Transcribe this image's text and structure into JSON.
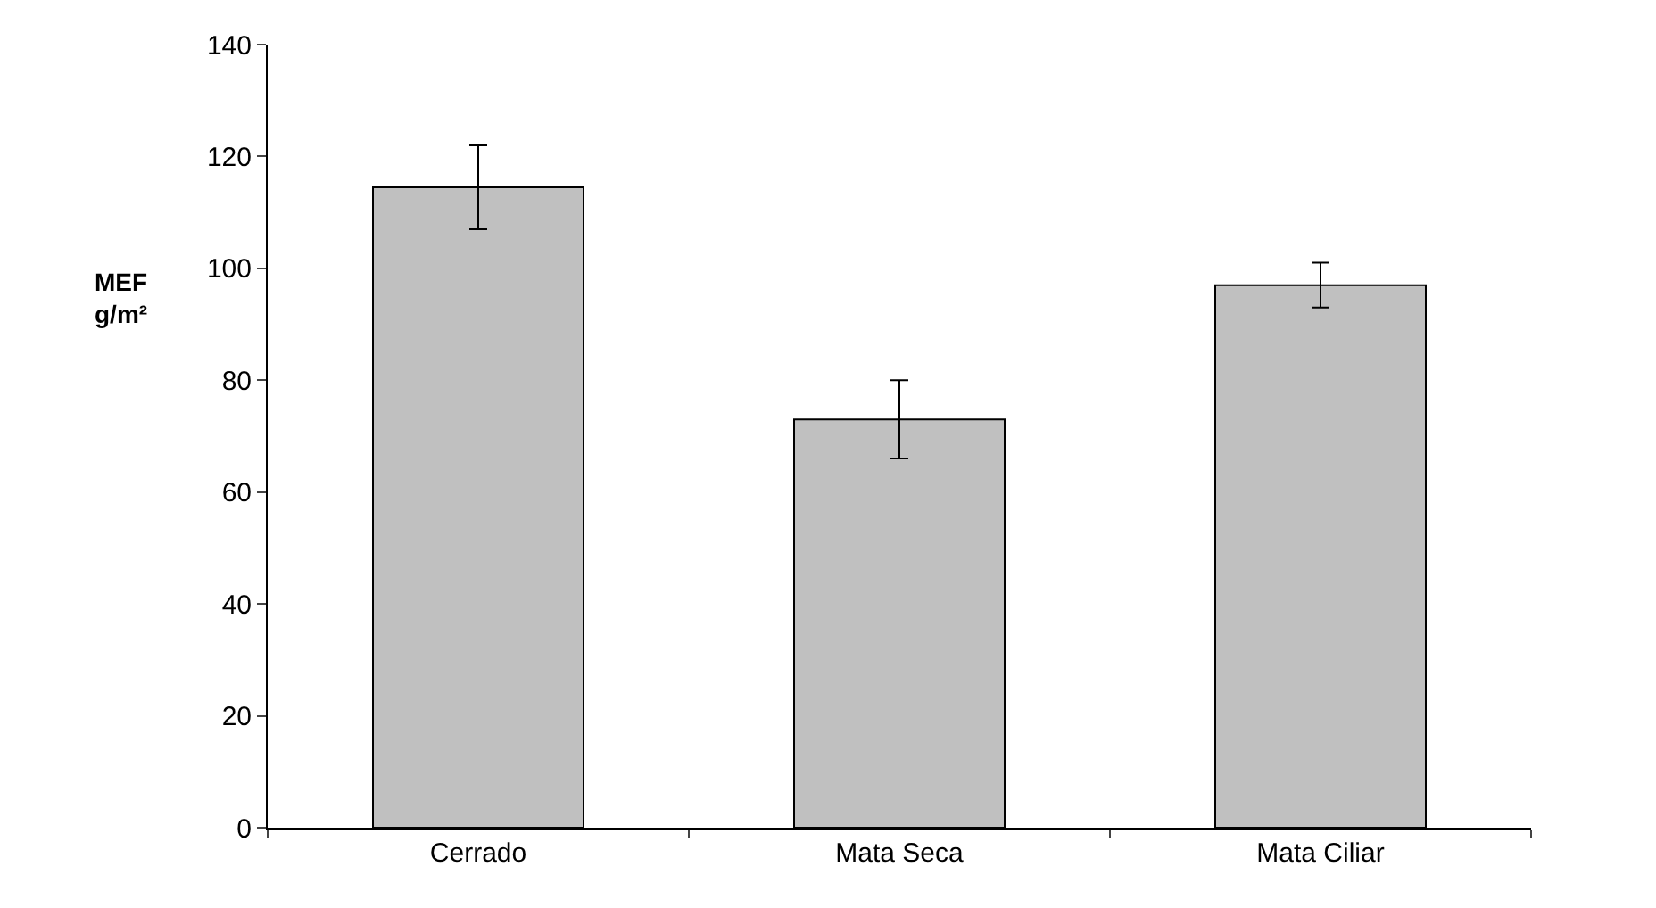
{
  "chart_data": {
    "type": "bar",
    "ylabel": "MEF\ng/m²",
    "categories": [
      "Cerrado",
      "Mata Seca",
      "Mata Ciliar"
    ],
    "values": [
      114.5,
      73,
      97
    ],
    "errors": [
      [
        107,
        122
      ],
      [
        66,
        80
      ],
      [
        93,
        101
      ]
    ],
    "color": "#c0c0c0",
    "ylim": [
      0,
      140
    ],
    "yticks": [
      0,
      20,
      40,
      60,
      80,
      100,
      120,
      140
    ],
    "grid": false
  }
}
